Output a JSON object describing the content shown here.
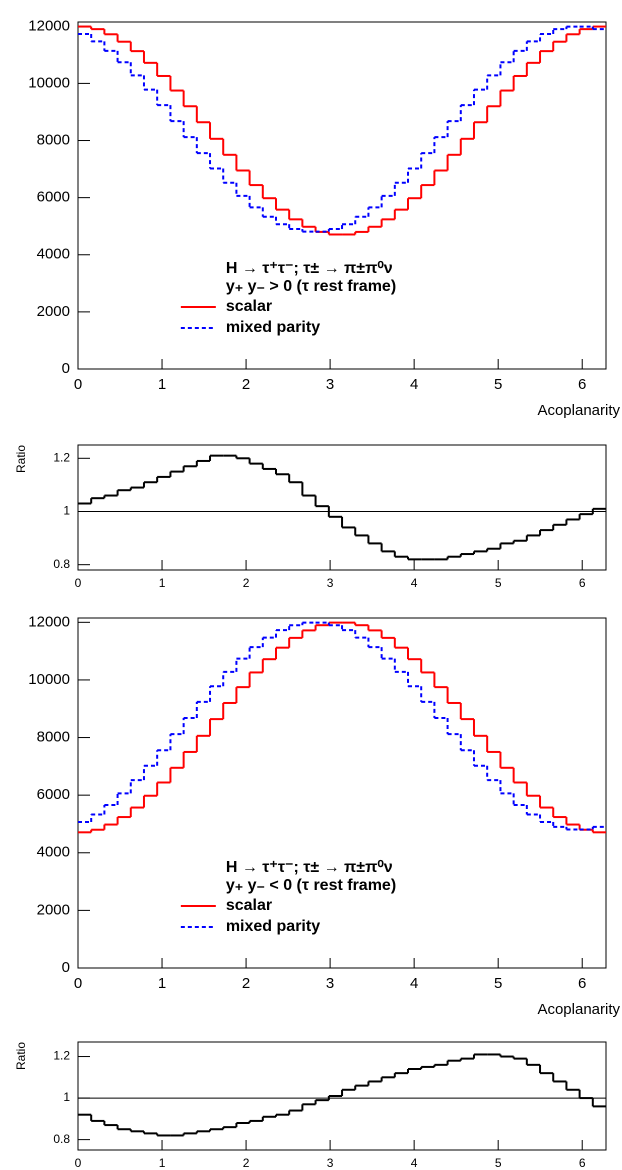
{
  "chart_data": [
    {
      "type": "histogram",
      "xlabel": "Acoplanarity",
      "annotations": [
        "H → τ⁺τ⁻; τ± → π±π⁰ν",
        "y₊ y₋ > 0 (τ rest frame)"
      ],
      "legend_loc": "lower center",
      "bins": [
        0,
        0.157,
        0.314,
        0.471,
        0.628,
        0.785,
        0.942,
        1.1,
        1.257,
        1.414,
        1.571,
        1.728,
        1.885,
        2.042,
        2.199,
        2.356,
        2.513,
        2.67,
        2.827,
        2.985,
        3.142,
        3.299,
        3.456,
        3.613,
        3.77,
        3.927,
        4.084,
        4.241,
        4.398,
        4.555,
        4.712,
        4.869,
        5.027,
        5.184,
        5.341,
        5.498,
        5.655,
        5.812,
        5.969,
        6.126,
        6.283
      ],
      "series": [
        {
          "name": "scalar",
          "color": "#ff0000",
          "line_style": "solid",
          "values": [
            11990,
            11900,
            11720,
            11460,
            11130,
            10720,
            10260,
            9750,
            9200,
            8640,
            8060,
            7500,
            6950,
            6440,
            5980,
            5580,
            5240,
            4980,
            4800,
            4710,
            4710,
            4800,
            4980,
            5240,
            5580,
            5980,
            6440,
            6950,
            7500,
            8060,
            8640,
            9200,
            9750,
            10260,
            10720,
            11130,
            11460,
            11720,
            11900,
            11990
          ]
        },
        {
          "name": "mixed parity",
          "color": "#0000ff",
          "line_style": "dashed",
          "values": [
            11730,
            11470,
            11140,
            10740,
            10280,
            9780,
            9240,
            8680,
            8120,
            7560,
            7020,
            6520,
            6060,
            5660,
            5330,
            5070,
            4900,
            4810,
            4810,
            4900,
            5070,
            5330,
            5660,
            6060,
            6520,
            7020,
            7560,
            8120,
            8680,
            9240,
            9780,
            10280,
            10740,
            11140,
            11470,
            11730,
            11900,
            11990,
            11990,
            11900
          ]
        }
      ],
      "xlim": [
        0,
        6.283
      ],
      "ylim": [
        0,
        12150
      ],
      "xticks": [
        0,
        1,
        2,
        3,
        4,
        5,
        6
      ],
      "yticks": [
        0,
        2000,
        4000,
        6000,
        8000,
        10000,
        12000
      ]
    },
    {
      "type": "histogram",
      "ylabel": "Ratio",
      "hline": 1,
      "bins": [
        0,
        0.157,
        0.314,
        0.471,
        0.628,
        0.785,
        0.942,
        1.1,
        1.257,
        1.414,
        1.571,
        1.728,
        1.885,
        2.042,
        2.199,
        2.356,
        2.513,
        2.67,
        2.827,
        2.985,
        3.142,
        3.299,
        3.456,
        3.613,
        3.77,
        3.927,
        4.084,
        4.241,
        4.398,
        4.555,
        4.712,
        4.869,
        5.027,
        5.184,
        5.341,
        5.498,
        5.655,
        5.812,
        5.969,
        6.126,
        6.283
      ],
      "series": [
        {
          "color": "#000000",
          "line_style": "solid",
          "values": [
            1.03,
            1.05,
            1.06,
            1.08,
            1.09,
            1.11,
            1.13,
            1.15,
            1.17,
            1.19,
            1.21,
            1.21,
            1.2,
            1.18,
            1.16,
            1.14,
            1.11,
            1.06,
            1.02,
            0.98,
            0.94,
            0.91,
            0.88,
            0.85,
            0.83,
            0.82,
            0.82,
            0.82,
            0.83,
            0.84,
            0.85,
            0.86,
            0.88,
            0.89,
            0.91,
            0.93,
            0.95,
            0.97,
            0.99,
            1.01
          ]
        }
      ],
      "xlim": [
        0,
        6.283
      ],
      "ylim": [
        0.78,
        1.25
      ],
      "xticks": [
        0,
        1,
        2,
        3,
        4,
        5,
        6
      ],
      "yticks": [
        0.8,
        1,
        1.2
      ]
    },
    {
      "type": "histogram",
      "xlabel": "Acoplanarity",
      "annotations": [
        "H → τ⁺τ⁻; τ± → π±π⁰ν",
        "y₊ y₋ < 0 (τ rest frame)"
      ],
      "legend_loc": "lower center",
      "bins": [
        0,
        0.157,
        0.314,
        0.471,
        0.628,
        0.785,
        0.942,
        1.1,
        1.257,
        1.414,
        1.571,
        1.728,
        1.885,
        2.042,
        2.199,
        2.356,
        2.513,
        2.67,
        2.827,
        2.985,
        3.142,
        3.299,
        3.456,
        3.613,
        3.77,
        3.927,
        4.084,
        4.241,
        4.398,
        4.555,
        4.712,
        4.869,
        5.027,
        5.184,
        5.341,
        5.498,
        5.655,
        5.812,
        5.969,
        6.126,
        6.283
      ],
      "series": [
        {
          "name": "scalar",
          "color": "#ff0000",
          "line_style": "solid",
          "values": [
            4710,
            4800,
            4980,
            5240,
            5570,
            5980,
            6440,
            6950,
            7500,
            8060,
            8640,
            9200,
            9750,
            10260,
            10720,
            11120,
            11460,
            11720,
            11900,
            11990,
            11990,
            11900,
            11720,
            11460,
            11120,
            10720,
            10260,
            9750,
            9200,
            8640,
            8060,
            7500,
            6950,
            6440,
            5980,
            5570,
            5240,
            4980,
            4800,
            4710
          ]
        },
        {
          "name": "mixed parity",
          "color": "#0000ff",
          "line_style": "dashed",
          "values": [
            5070,
            5330,
            5660,
            6060,
            6520,
            7020,
            7560,
            8120,
            8680,
            9240,
            9780,
            10280,
            10740,
            11140,
            11470,
            11730,
            11900,
            11990,
            11990,
            11900,
            11730,
            11470,
            11140,
            10740,
            10280,
            9780,
            9240,
            8680,
            8120,
            7560,
            7020,
            6520,
            6060,
            5660,
            5330,
            5070,
            4900,
            4810,
            4810,
            4900
          ]
        }
      ],
      "xlim": [
        0,
        6.283
      ],
      "ylim": [
        0,
        12150
      ],
      "xticks": [
        0,
        1,
        2,
        3,
        4,
        5,
        6
      ],
      "yticks": [
        0,
        2000,
        4000,
        6000,
        8000,
        10000,
        12000
      ]
    },
    {
      "type": "histogram",
      "ylabel": "Ratio",
      "hline": 1,
      "bins": [
        0,
        0.157,
        0.314,
        0.471,
        0.628,
        0.785,
        0.942,
        1.1,
        1.257,
        1.414,
        1.571,
        1.728,
        1.885,
        2.042,
        2.199,
        2.356,
        2.513,
        2.67,
        2.827,
        2.985,
        3.142,
        3.299,
        3.456,
        3.613,
        3.77,
        3.927,
        4.084,
        4.241,
        4.398,
        4.555,
        4.712,
        4.869,
        5.027,
        5.184,
        5.341,
        5.498,
        5.655,
        5.812,
        5.969,
        6.126,
        6.283
      ],
      "series": [
        {
          "color": "#000000",
          "line_style": "solid",
          "values": [
            0.92,
            0.89,
            0.87,
            0.85,
            0.84,
            0.83,
            0.82,
            0.82,
            0.83,
            0.84,
            0.85,
            0.86,
            0.88,
            0.89,
            0.91,
            0.92,
            0.94,
            0.97,
            0.99,
            1.01,
            1.04,
            1.06,
            1.08,
            1.1,
            1.12,
            1.14,
            1.15,
            1.16,
            1.18,
            1.19,
            1.21,
            1.21,
            1.2,
            1.19,
            1.16,
            1.12,
            1.08,
            1.04,
            1,
            0.96
          ]
        }
      ],
      "xlim": [
        0,
        6.283
      ],
      "ylim": [
        0.75,
        1.27
      ],
      "xticks": [
        0,
        1,
        2,
        3,
        4,
        5,
        6
      ],
      "yticks": [
        0.8,
        1,
        1.2
      ]
    }
  ]
}
